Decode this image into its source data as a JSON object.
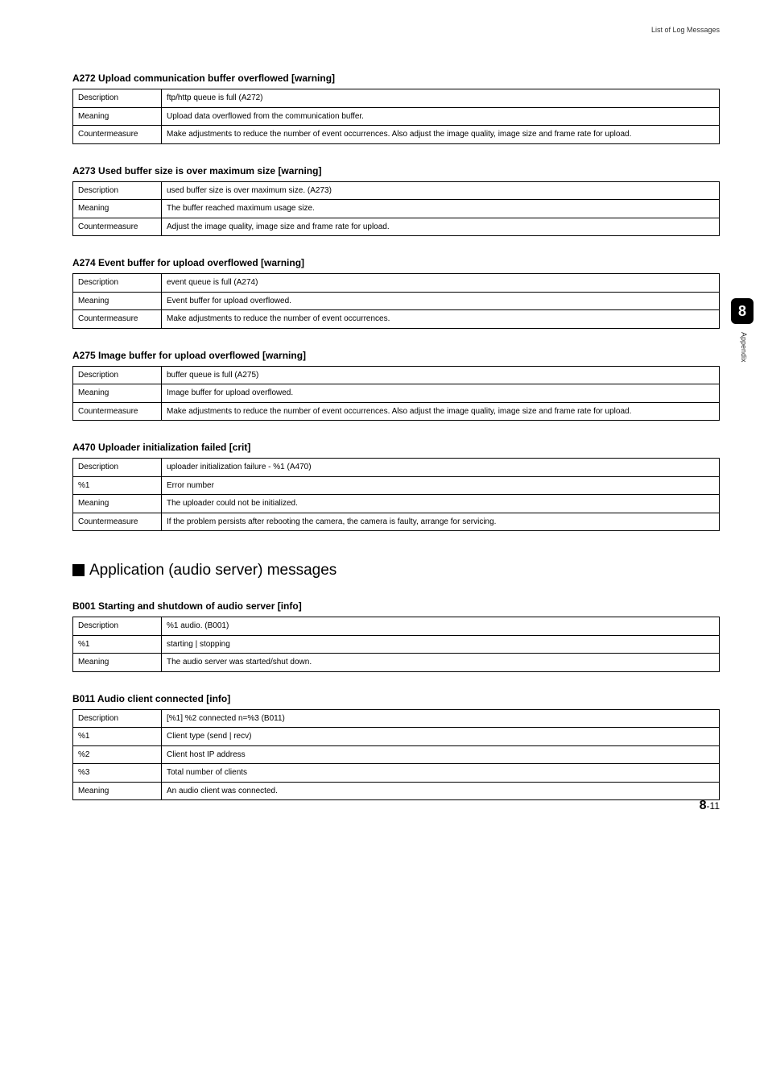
{
  "header": {
    "section_label": "List of Log Messages"
  },
  "side": {
    "tab": "8",
    "label": "Appendix"
  },
  "footer": {
    "chapter": "8",
    "page": "-11"
  },
  "big_heading": "Application (audio server) messages",
  "tables": {
    "a272": {
      "title": "A272 Upload communication buffer overflowed [warning]",
      "rows": [
        {
          "k": "Description",
          "v": "ftp/http queue is full (A272)"
        },
        {
          "k": "Meaning",
          "v": "Upload data overflowed from the communication buffer."
        },
        {
          "k": "Countermeasure",
          "v": "Make adjustments to reduce the number of event occurrences. Also adjust the image quality, image size and frame rate for upload."
        }
      ]
    },
    "a273": {
      "title": "A273 Used buffer size is over maximum size [warning]",
      "rows": [
        {
          "k": "Description",
          "v": "used buffer size is over maximum size. (A273)"
        },
        {
          "k": "Meaning",
          "v": "The buffer reached maximum usage size."
        },
        {
          "k": "Countermeasure",
          "v": "Adjust the image quality, image size and frame rate for upload."
        }
      ]
    },
    "a274": {
      "title": "A274 Event buffer for upload overflowed [warning]",
      "rows": [
        {
          "k": "Description",
          "v": "event queue is full (A274)"
        },
        {
          "k": "Meaning",
          "v": "Event buffer for upload overflowed."
        },
        {
          "k": "Countermeasure",
          "v": "Make adjustments to reduce the number of event occurrences."
        }
      ]
    },
    "a275": {
      "title": "A275 Image buffer for upload overflowed [warning]",
      "rows": [
        {
          "k": "Description",
          "v": "buffer queue is full (A275)"
        },
        {
          "k": "Meaning",
          "v": "Image buffer for upload overflowed."
        },
        {
          "k": "Countermeasure",
          "v": "Make adjustments to reduce the number of event occurrences. Also adjust the image quality, image size and frame rate for upload."
        }
      ]
    },
    "a470": {
      "title": "A470 Uploader initialization failed [crit]",
      "rows": [
        {
          "k": "Description",
          "v": "uploader initialization failure - %1 (A470)"
        },
        {
          "k": "%1",
          "v": "Error number"
        },
        {
          "k": "Meaning",
          "v": "The uploader could not be initialized."
        },
        {
          "k": "Countermeasure",
          "v": "If the problem persists after rebooting the camera, the camera is faulty, arrange for servicing."
        }
      ]
    },
    "b001": {
      "title": "B001 Starting and shutdown of audio server [info]",
      "rows": [
        {
          "k": "Description",
          "v": "%1 audio. (B001)"
        },
        {
          "k": "%1",
          "v": "starting | stopping"
        },
        {
          "k": "Meaning",
          "v": "The audio server was started/shut down."
        }
      ]
    },
    "b011": {
      "title": "B011 Audio client connected [info]",
      "rows": [
        {
          "k": "Description",
          "v": "[%1] %2 connected n=%3 (B011)"
        },
        {
          "k": "%1",
          "v": "Client type (send | recv)"
        },
        {
          "k": "%2",
          "v": "Client host IP address"
        },
        {
          "k": "%3",
          "v": "Total number of clients"
        },
        {
          "k": "Meaning",
          "v": "An audio client was connected."
        }
      ]
    }
  }
}
